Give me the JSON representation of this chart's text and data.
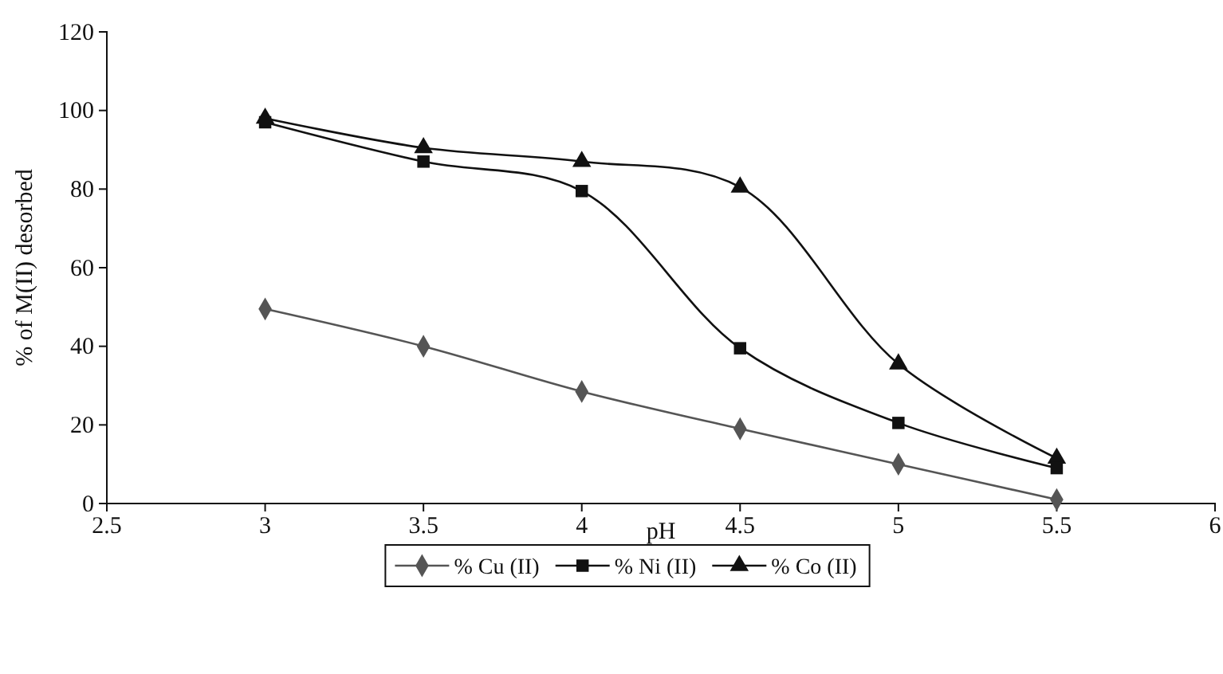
{
  "chart_data": {
    "type": "line",
    "xlabel": "pH",
    "ylabel": "% of M(II) desorbed",
    "x": [
      3,
      3.5,
      4,
      4.5,
      5,
      5.5
    ],
    "series": [
      {
        "name": "% Cu (II)",
        "color": "#555555",
        "marker": "diamond",
        "values": [
          49.5,
          40,
          28.5,
          19,
          10,
          1
        ]
      },
      {
        "name": "% Ni (II)",
        "color": "#111111",
        "marker": "square",
        "values": [
          97,
          87,
          79.5,
          39.5,
          20.5,
          9
        ]
      },
      {
        "name": "% Co (II)",
        "color": "#111111",
        "marker": "triangle",
        "values": [
          98,
          90.5,
          87,
          80.5,
          35.5,
          11.5
        ]
      }
    ],
    "xlim": [
      2.5,
      6
    ],
    "xticks": [
      2.5,
      3,
      3.5,
      4,
      4.5,
      5,
      5.5,
      6
    ],
    "ylim": [
      0,
      120
    ],
    "yticks": [
      0,
      20,
      40,
      60,
      80,
      100,
      120
    ],
    "grid": false,
    "legend": "bottom",
    "line_style": "solid"
  }
}
